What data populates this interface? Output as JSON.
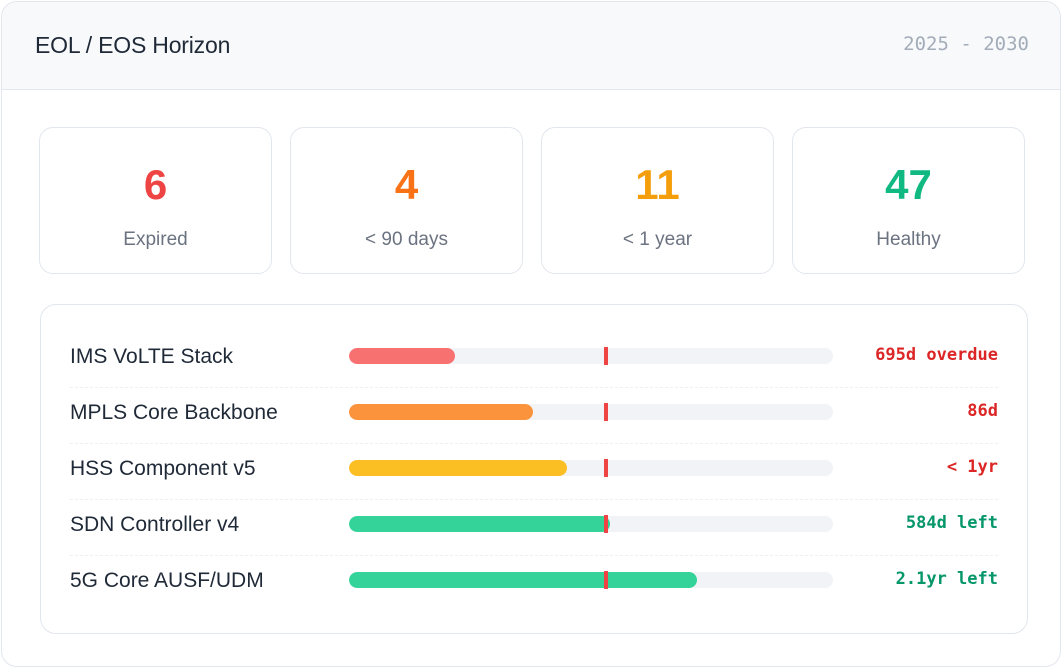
{
  "header": {
    "title": "EOL / EOS Horizon",
    "range": "2025 - 2030"
  },
  "stats": [
    {
      "value": "6",
      "label": "Expired",
      "color": "#ef4444"
    },
    {
      "value": "4",
      "label": "< 90 days",
      "color": "#f97316"
    },
    {
      "value": "11",
      "label": "< 1 year",
      "color": "#f59e0b"
    },
    {
      "value": "47",
      "label": "Healthy",
      "color": "#10b981"
    }
  ],
  "today_marker_fraction": 0.53,
  "items": [
    {
      "name": "IMS VoLTE Stack",
      "fill": 0.22,
      "bar_color": "#f87171",
      "status": "695d overdue",
      "status_color": "#dc2626"
    },
    {
      "name": "MPLS Core Backbone",
      "fill": 0.38,
      "bar_color": "#fb923c",
      "status": "86d",
      "status_color": "#dc2626"
    },
    {
      "name": "HSS Component v5",
      "fill": 0.45,
      "bar_color": "#fbbf24",
      "status": "< 1yr",
      "status_color": "#dc2626"
    },
    {
      "name": "SDN Controller v4",
      "fill": 0.54,
      "bar_color": "#34d399",
      "status": "584d left",
      "status_color": "#059669"
    },
    {
      "name": "5G Core AUSF/UDM",
      "fill": 0.72,
      "bar_color": "#34d399",
      "status": "2.1yr left",
      "status_color": "#059669"
    }
  ]
}
